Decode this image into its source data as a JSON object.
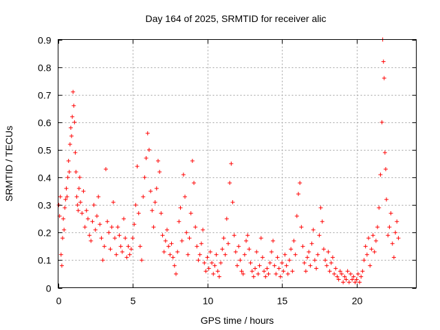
{
  "chart_data": {
    "type": "scatter",
    "title": "Day 164 of 2025, SRMTID for receiver alic",
    "xlabel": "GPS time / hours",
    "ylabel": "SRMTID / TECUs",
    "xlim": [
      0,
      24
    ],
    "ylim": [
      0,
      0.9
    ],
    "xticks": [
      0,
      5,
      10,
      15,
      20
    ],
    "xtick_labels": [
      "0",
      "5",
      "10",
      "15",
      "20"
    ],
    "yticks": [
      0,
      0.1,
      0.2,
      0.3,
      0.4,
      0.5,
      0.6,
      0.7,
      0.8,
      0.9
    ],
    "ytick_labels": [
      "0",
      "0.1",
      "0.2",
      "0.3",
      "0.4",
      "0.5",
      "0.6",
      "0.7",
      "0.8",
      "0.9"
    ],
    "grid": true,
    "marker": "+",
    "color": "#ff0000",
    "series": [
      {
        "name": "SRMTID",
        "points": [
          [
            0.05,
            0.3
          ],
          [
            0.1,
            0.26
          ],
          [
            0.15,
            0.33
          ],
          [
            0.2,
            0.12
          ],
          [
            0.25,
            0.08
          ],
          [
            0.3,
            0.18
          ],
          [
            0.35,
            0.25
          ],
          [
            0.4,
            0.21
          ],
          [
            0.45,
            0.29
          ],
          [
            0.5,
            0.32
          ],
          [
            0.55,
            0.36
          ],
          [
            0.6,
            0.33
          ],
          [
            0.65,
            0.4
          ],
          [
            0.7,
            0.46
          ],
          [
            0.75,
            0.42
          ],
          [
            0.8,
            0.52
          ],
          [
            0.85,
            0.58
          ],
          [
            0.9,
            0.55
          ],
          [
            0.95,
            0.62
          ],
          [
            1.0,
            0.71
          ],
          [
            1.05,
            0.66
          ],
          [
            1.1,
            0.6
          ],
          [
            1.15,
            0.49
          ],
          [
            1.2,
            0.42
          ],
          [
            1.25,
            0.33
          ],
          [
            1.3,
            0.3
          ],
          [
            1.35,
            0.28
          ],
          [
            1.4,
            0.36
          ],
          [
            1.45,
            0.4
          ],
          [
            1.5,
            0.31
          ],
          [
            1.6,
            0.27
          ],
          [
            1.7,
            0.35
          ],
          [
            1.8,
            0.22
          ],
          [
            1.9,
            0.28
          ],
          [
            2.0,
            0.25
          ],
          [
            2.1,
            0.19
          ],
          [
            2.2,
            0.17
          ],
          [
            2.3,
            0.24
          ],
          [
            2.4,
            0.3
          ],
          [
            2.5,
            0.21
          ],
          [
            2.6,
            0.26
          ],
          [
            2.7,
            0.33
          ],
          [
            2.8,
            0.23
          ],
          [
            2.9,
            0.18
          ],
          [
            3.0,
            0.1
          ],
          [
            3.1,
            0.15
          ],
          [
            3.2,
            0.43
          ],
          [
            3.3,
            0.24
          ],
          [
            3.4,
            0.2
          ],
          [
            3.5,
            0.14
          ],
          [
            3.6,
            0.22
          ],
          [
            3.7,
            0.31
          ],
          [
            3.8,
            0.18
          ],
          [
            3.9,
            0.12
          ],
          [
            4.0,
            0.22
          ],
          [
            4.1,
            0.19
          ],
          [
            4.2,
            0.15
          ],
          [
            4.3,
            0.13
          ],
          [
            4.4,
            0.25
          ],
          [
            4.5,
            0.18
          ],
          [
            4.6,
            0.11
          ],
          [
            4.7,
            0.15
          ],
          [
            4.8,
            0.12
          ],
          [
            4.9,
            0.14
          ],
          [
            5.0,
            0.18
          ],
          [
            5.1,
            0.23
          ],
          [
            5.2,
            0.3
          ],
          [
            5.3,
            0.44
          ],
          [
            5.4,
            0.27
          ],
          [
            5.5,
            0.15
          ],
          [
            5.6,
            0.1
          ],
          [
            5.7,
            0.33
          ],
          [
            5.8,
            0.4
          ],
          [
            5.9,
            0.47
          ],
          [
            6.0,
            0.56
          ],
          [
            6.1,
            0.5
          ],
          [
            6.2,
            0.35
          ],
          [
            6.3,
            0.28
          ],
          [
            6.4,
            0.22
          ],
          [
            6.5,
            0.31
          ],
          [
            6.6,
            0.36
          ],
          [
            6.7,
            0.46
          ],
          [
            6.8,
            0.42
          ],
          [
            6.9,
            0.27
          ],
          [
            7.0,
            0.19
          ],
          [
            7.1,
            0.13
          ],
          [
            7.2,
            0.17
          ],
          [
            7.3,
            0.21
          ],
          [
            7.4,
            0.15
          ],
          [
            7.5,
            0.12
          ],
          [
            7.6,
            0.16
          ],
          [
            7.7,
            0.11
          ],
          [
            7.8,
            0.08
          ],
          [
            7.9,
            0.05
          ],
          [
            8.0,
            0.13
          ],
          [
            8.1,
            0.24
          ],
          [
            8.2,
            0.29
          ],
          [
            8.3,
            0.17
          ],
          [
            8.4,
            0.41
          ],
          [
            8.5,
            0.33
          ],
          [
            8.6,
            0.2
          ],
          [
            8.7,
            0.12
          ],
          [
            8.8,
            0.18
          ],
          [
            8.9,
            0.27
          ],
          [
            9.0,
            0.46
          ],
          [
            9.1,
            0.38
          ],
          [
            9.2,
            0.22
          ],
          [
            9.3,
            0.15
          ],
          [
            9.4,
            0.1
          ],
          [
            9.5,
            0.12
          ],
          [
            9.6,
            0.16
          ],
          [
            9.7,
            0.21
          ],
          [
            9.8,
            0.09
          ],
          [
            9.9,
            0.06
          ],
          [
            10.0,
            0.11
          ],
          [
            10.1,
            0.07
          ],
          [
            10.2,
            0.13
          ],
          [
            10.3,
            0.09
          ],
          [
            10.4,
            0.05
          ],
          [
            10.5,
            0.08
          ],
          [
            10.6,
            0.12
          ],
          [
            10.7,
            0.06
          ],
          [
            10.8,
            0.04
          ],
          [
            10.9,
            0.09
          ],
          [
            11.0,
            0.14
          ],
          [
            11.1,
            0.18
          ],
          [
            11.2,
            0.12
          ],
          [
            11.3,
            0.25
          ],
          [
            11.4,
            0.16
          ],
          [
            11.5,
            0.38
          ],
          [
            11.6,
            0.45
          ],
          [
            11.7,
            0.31
          ],
          [
            11.8,
            0.19
          ],
          [
            11.9,
            0.13
          ],
          [
            12.0,
            0.08
          ],
          [
            12.1,
            0.15
          ],
          [
            12.2,
            0.1
          ],
          [
            12.3,
            0.06
          ],
          [
            12.4,
            0.05
          ],
          [
            12.5,
            0.12
          ],
          [
            12.6,
            0.17
          ],
          [
            12.7,
            0.19
          ],
          [
            12.8,
            0.14
          ],
          [
            12.9,
            0.09
          ],
          [
            13.0,
            0.06
          ],
          [
            13.1,
            0.04
          ],
          [
            13.2,
            0.07
          ],
          [
            13.3,
            0.13
          ],
          [
            13.4,
            0.05
          ],
          [
            13.5,
            0.08
          ],
          [
            13.6,
            0.18
          ],
          [
            13.7,
            0.11
          ],
          [
            13.8,
            0.06
          ],
          [
            13.9,
            0.04
          ],
          [
            14.0,
            0.07
          ],
          [
            14.1,
            0.05
          ],
          [
            14.2,
            0.09
          ],
          [
            14.3,
            0.13
          ],
          [
            14.4,
            0.17
          ],
          [
            14.5,
            0.08
          ],
          [
            14.6,
            0.05
          ],
          [
            14.7,
            0.11
          ],
          [
            14.8,
            0.07
          ],
          [
            14.9,
            0.04
          ],
          [
            15.0,
            0.09
          ],
          [
            15.1,
            0.06
          ],
          [
            15.2,
            0.12
          ],
          [
            15.3,
            0.08
          ],
          [
            15.4,
            0.05
          ],
          [
            15.5,
            0.1
          ],
          [
            15.6,
            0.14
          ],
          [
            15.7,
            0.06
          ],
          [
            15.8,
            0.17
          ],
          [
            15.9,
            0.12
          ],
          [
            16.0,
            0.26
          ],
          [
            16.1,
            0.34
          ],
          [
            16.2,
            0.38
          ],
          [
            16.3,
            0.22
          ],
          [
            16.4,
            0.15
          ],
          [
            16.5,
            0.09
          ],
          [
            16.6,
            0.06
          ],
          [
            16.7,
            0.11
          ],
          [
            16.8,
            0.13
          ],
          [
            16.9,
            0.08
          ],
          [
            17.0,
            0.16
          ],
          [
            17.1,
            0.21
          ],
          [
            17.2,
            0.1
          ],
          [
            17.3,
            0.07
          ],
          [
            17.4,
            0.12
          ],
          [
            17.5,
            0.19
          ],
          [
            17.6,
            0.29
          ],
          [
            17.7,
            0.24
          ],
          [
            17.8,
            0.14
          ],
          [
            17.9,
            0.1
          ],
          [
            18.0,
            0.08
          ],
          [
            18.1,
            0.13
          ],
          [
            18.2,
            0.06
          ],
          [
            18.3,
            0.09
          ],
          [
            18.4,
            0.11
          ],
          [
            18.5,
            0.05
          ],
          [
            18.6,
            0.07
          ],
          [
            18.7,
            0.04
          ],
          [
            18.8,
            0.03
          ],
          [
            18.9,
            0.06
          ],
          [
            19.0,
            0.05
          ],
          [
            19.1,
            0.02
          ],
          [
            19.2,
            0.04
          ],
          [
            19.3,
            0.03
          ],
          [
            19.4,
            0.06
          ],
          [
            19.5,
            0.02
          ],
          [
            19.6,
            0.05
          ],
          [
            19.7,
            0.03
          ],
          [
            19.8,
            0.04
          ],
          [
            19.9,
            0.02
          ],
          [
            20.0,
            0.03
          ],
          [
            20.1,
            0.05
          ],
          [
            20.2,
            0.02
          ],
          [
            20.3,
            0.04
          ],
          [
            20.4,
            0.06
          ],
          [
            20.5,
            0.1
          ],
          [
            20.6,
            0.15
          ],
          [
            20.7,
            0.12
          ],
          [
            20.8,
            0.18
          ],
          [
            20.9,
            0.08
          ],
          [
            21.0,
            0.14
          ],
          [
            21.1,
            0.19
          ],
          [
            21.2,
            0.13
          ],
          [
            21.3,
            0.17
          ],
          [
            21.4,
            0.22
          ],
          [
            21.5,
            0.29
          ],
          [
            21.6,
            0.41
          ],
          [
            21.7,
            0.6
          ],
          [
            21.75,
            0.9
          ],
          [
            21.8,
            0.82
          ],
          [
            21.85,
            0.76
          ],
          [
            21.9,
            0.49
          ],
          [
            21.95,
            0.43
          ],
          [
            22.0,
            0.32
          ],
          [
            22.1,
            0.19
          ],
          [
            22.2,
            0.22
          ],
          [
            22.3,
            0.27
          ],
          [
            22.4,
            0.16
          ],
          [
            22.5,
            0.11
          ],
          [
            22.6,
            0.2
          ],
          [
            22.7,
            0.24
          ],
          [
            22.8,
            0.18
          ]
        ]
      }
    ]
  }
}
